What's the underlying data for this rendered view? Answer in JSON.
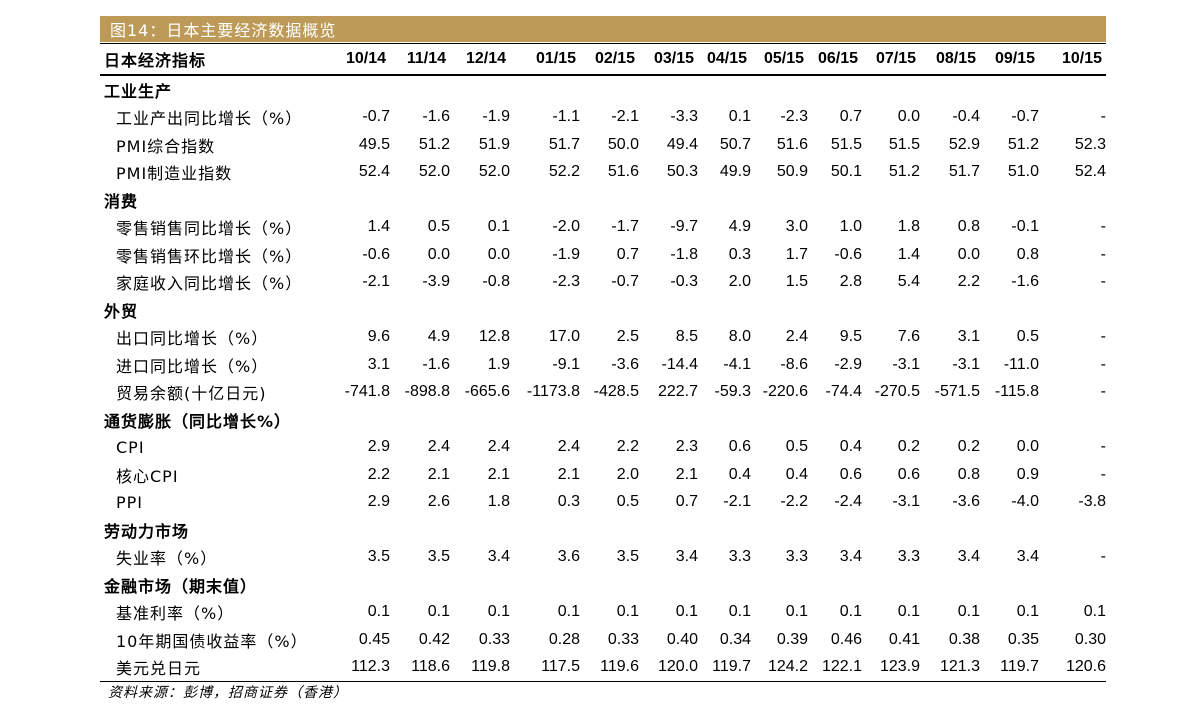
{
  "title": "图14：日本主要经济数据概览",
  "header": {
    "label": "日本经济指标",
    "columns": [
      "10/14",
      "11/14",
      "12/14",
      "01/15",
      "02/15",
      "03/15",
      "04/15",
      "05/15",
      "06/15",
      "07/15",
      "08/15",
      "09/15",
      "10/15"
    ]
  },
  "sections": [
    {
      "name": "工业生产",
      "rows": [
        {
          "label": "工业产出同比增长（%）",
          "values": [
            "-0.7",
            "-1.6",
            "-1.9",
            "-1.1",
            "-2.1",
            "-3.3",
            "0.1",
            "-2.3",
            "0.7",
            "0.0",
            "-0.4",
            "-0.7",
            "-"
          ]
        },
        {
          "label": "PMI综合指数",
          "values": [
            "49.5",
            "51.2",
            "51.9",
            "51.7",
            "50.0",
            "49.4",
            "50.7",
            "51.6",
            "51.5",
            "51.5",
            "52.9",
            "51.2",
            "52.3"
          ]
        },
        {
          "label": "PMI制造业指数",
          "values": [
            "52.4",
            "52.0",
            "52.0",
            "52.2",
            "51.6",
            "50.3",
            "49.9",
            "50.9",
            "50.1",
            "51.2",
            "51.7",
            "51.0",
            "52.4"
          ]
        }
      ]
    },
    {
      "name": "消费",
      "rows": [
        {
          "label": "零售销售同比增长（%）",
          "values": [
            "1.4",
            "0.5",
            "0.1",
            "-2.0",
            "-1.7",
            "-9.7",
            "4.9",
            "3.0",
            "1.0",
            "1.8",
            "0.8",
            "-0.1",
            "-"
          ]
        },
        {
          "label": "零售销售环比增长（%）",
          "values": [
            "-0.6",
            "0.0",
            "0.0",
            "-1.9",
            "0.7",
            "-1.8",
            "0.3",
            "1.7",
            "-0.6",
            "1.4",
            "0.0",
            "0.8",
            "-"
          ]
        },
        {
          "label": "家庭收入同比增长（%）",
          "values": [
            "-2.1",
            "-3.9",
            "-0.8",
            "-2.3",
            "-0.7",
            "-0.3",
            "2.0",
            "1.5",
            "2.8",
            "5.4",
            "2.2",
            "-1.6",
            "-"
          ]
        }
      ]
    },
    {
      "name": "外贸",
      "rows": [
        {
          "label": "出口同比增长（%）",
          "values": [
            "9.6",
            "4.9",
            "12.8",
            "17.0",
            "2.5",
            "8.5",
            "8.0",
            "2.4",
            "9.5",
            "7.6",
            "3.1",
            "0.5",
            "-"
          ]
        },
        {
          "label": "进口同比增长（%）",
          "values": [
            "3.1",
            "-1.6",
            "1.9",
            "-9.1",
            "-3.6",
            "-14.4",
            "-4.1",
            "-8.6",
            "-2.9",
            "-3.1",
            "-3.1",
            "-11.0",
            "-"
          ]
        },
        {
          "label": "贸易余额(十亿日元)",
          "values": [
            "-741.8",
            "-898.8",
            "-665.6",
            "-1173.8",
            "-428.5",
            "222.7",
            "-59.3",
            "-220.6",
            "-74.4",
            "-270.5",
            "-571.5",
            "-115.8",
            "-"
          ]
        }
      ]
    },
    {
      "name": "通货膨胀（同比增长%）",
      "rows": [
        {
          "label": "CPI",
          "values": [
            "2.9",
            "2.4",
            "2.4",
            "2.4",
            "2.2",
            "2.3",
            "0.6",
            "0.5",
            "0.4",
            "0.2",
            "0.2",
            "0.0",
            "-"
          ]
        },
        {
          "label": "核心CPI",
          "values": [
            "2.2",
            "2.1",
            "2.1",
            "2.1",
            "2.0",
            "2.1",
            "0.4",
            "0.4",
            "0.6",
            "0.6",
            "0.8",
            "0.9",
            "-"
          ]
        },
        {
          "label": "PPI",
          "values": [
            "2.9",
            "2.6",
            "1.8",
            "0.3",
            "0.5",
            "0.7",
            "-2.1",
            "-2.2",
            "-2.4",
            "-3.1",
            "-3.6",
            "-4.0",
            "-3.8"
          ]
        }
      ]
    },
    {
      "name": "劳动力市场",
      "rows": [
        {
          "label": "失业率（%）",
          "values": [
            "3.5",
            "3.5",
            "3.4",
            "3.6",
            "3.5",
            "3.4",
            "3.3",
            "3.3",
            "3.4",
            "3.3",
            "3.4",
            "3.4",
            "-"
          ]
        }
      ]
    },
    {
      "name": "金融市场（期末值）",
      "rows": [
        {
          "label": "基准利率（%）",
          "values": [
            "0.1",
            "0.1",
            "0.1",
            "0.1",
            "0.1",
            "0.1",
            "0.1",
            "0.1",
            "0.1",
            "0.1",
            "0.1",
            "0.1",
            "0.1"
          ]
        },
        {
          "label": "10年期国债收益率（%）",
          "values": [
            "0.45",
            "0.42",
            "0.33",
            "0.28",
            "0.33",
            "0.40",
            "0.34",
            "0.39",
            "0.46",
            "0.41",
            "0.38",
            "0.35",
            "0.30"
          ]
        },
        {
          "label": "美元兑日元",
          "values": [
            "112.3",
            "118.6",
            "119.8",
            "117.5",
            "119.6",
            "120.0",
            "119.7",
            "124.2",
            "122.1",
            "123.9",
            "121.3",
            "119.7",
            "120.6"
          ]
        }
      ]
    }
  ],
  "source": "资料来源：彭博，招商证券（香港）",
  "colors": {
    "title_bar": "#bd9a57",
    "title_text": "#ffffff",
    "rule": "#000000"
  }
}
